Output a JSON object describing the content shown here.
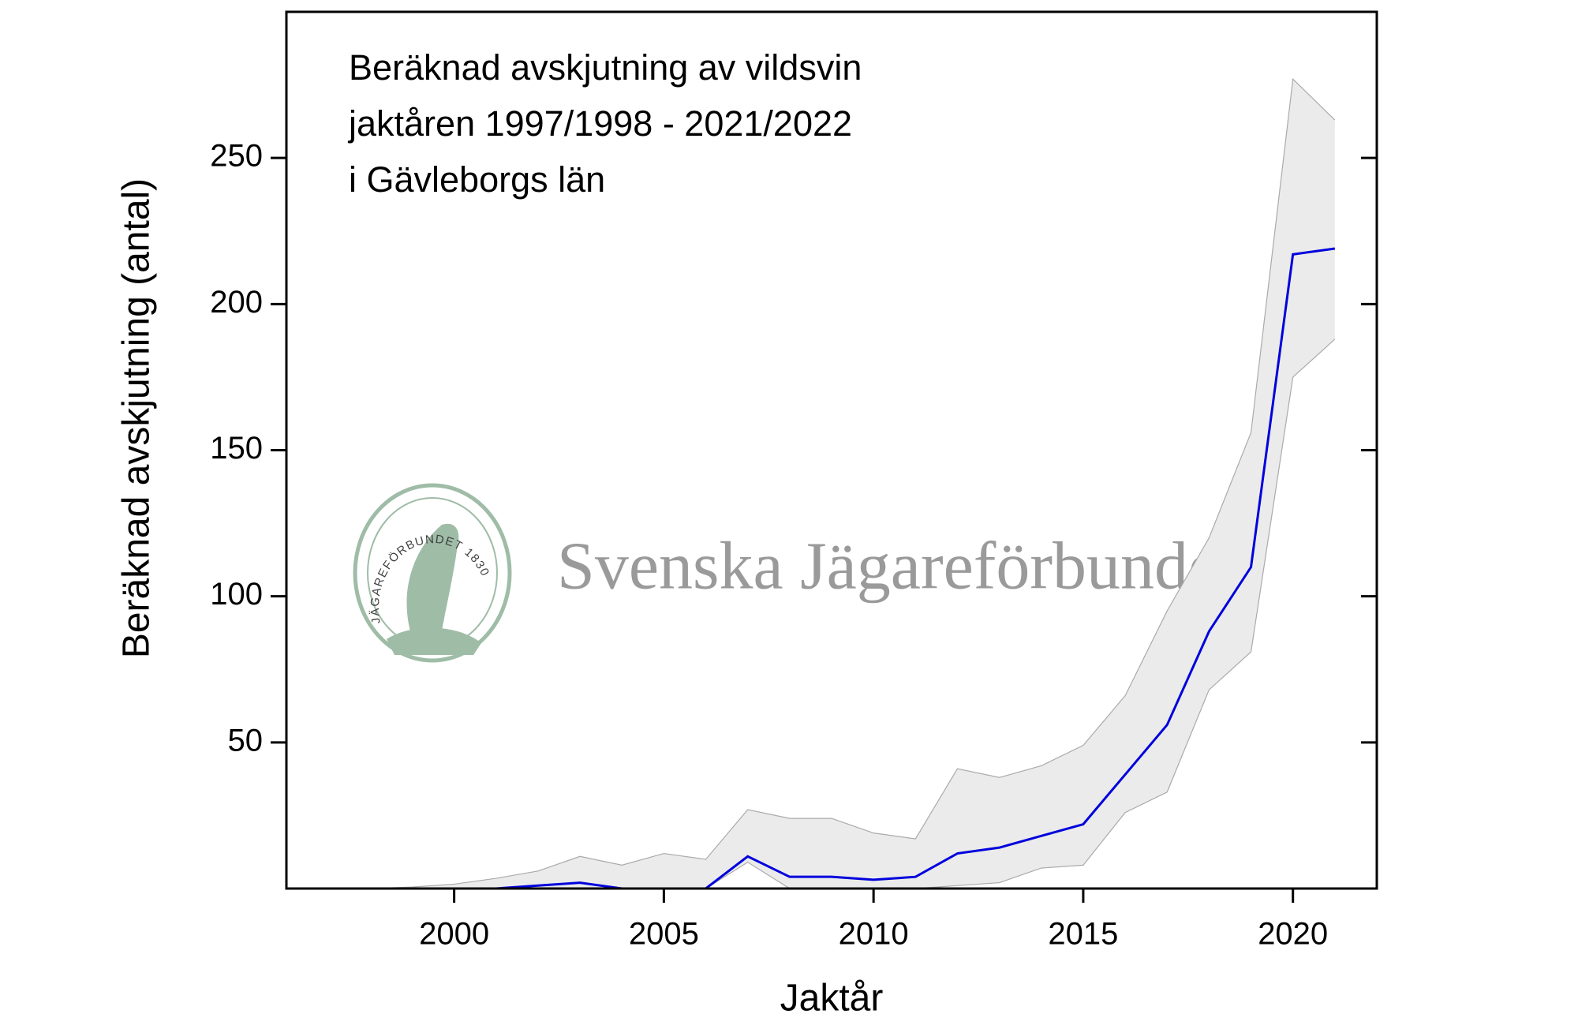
{
  "chart_data": {
    "type": "line",
    "title": [
      "Beräknad avskjutning av vildsvin",
      "jaktåren 1997/1998 - 2021/2022",
      "i Gävleborgs län"
    ],
    "xlabel": "Jaktår",
    "ylabel": "Beräknad avskjutning (antal)",
    "watermark": "Svenska Jägareförbundet",
    "seal_text": "JÄGAREFÖRBUNDET 1830",
    "x": [
      1997,
      1998,
      1999,
      2000,
      2001,
      2002,
      2003,
      2004,
      2005,
      2006,
      2007,
      2008,
      2009,
      2010,
      2011,
      2012,
      2013,
      2014,
      2015,
      2016,
      2017,
      2018,
      2019,
      2020,
      2021
    ],
    "series": [
      {
        "color": "#0000dd",
        "values": [
          0,
          0,
          0,
          0,
          0,
          1,
          2,
          0,
          0,
          0,
          11,
          4,
          4,
          3,
          4,
          12,
          14,
          18,
          22,
          39,
          56,
          88,
          110,
          217,
          219
        ]
      }
    ],
    "ci_upper": [
      0,
      0,
      0.5,
      1.5,
      3.5,
      6,
      11,
      8,
      12,
      10,
      27,
      24,
      24,
      19,
      17,
      41,
      38,
      42,
      49,
      66,
      95,
      120,
      156,
      277,
      263
    ],
    "ci_lower": [
      0,
      0,
      0,
      0,
      0,
      0,
      0,
      0,
      0,
      0,
      9,
      0,
      0,
      0,
      0,
      1,
      2,
      7,
      8,
      26,
      33,
      68,
      81,
      175,
      188
    ],
    "ci_color": "#ebebeb",
    "xlim": [
      1996,
      2022
    ],
    "xticks": [
      2000,
      2005,
      2010,
      2015,
      2020
    ],
    "ylim": [
      0,
      300
    ],
    "yticks": [
      50,
      100,
      150,
      200,
      250
    ]
  }
}
